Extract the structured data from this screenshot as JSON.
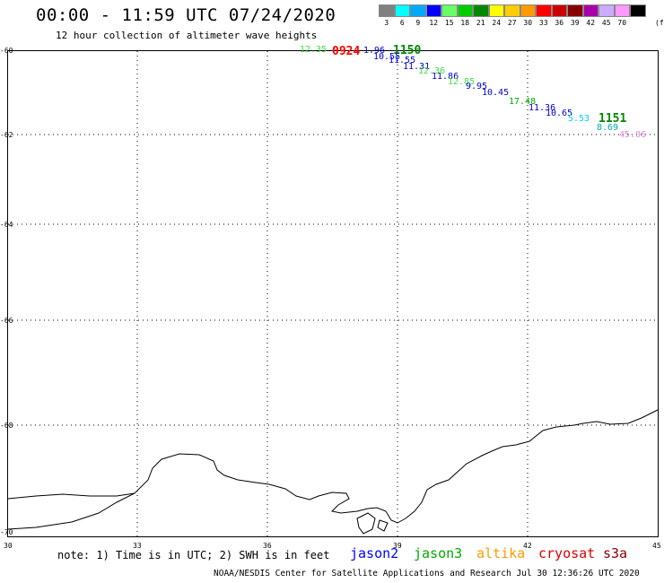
{
  "header": {
    "title": "00:00 - 11:59 UTC 07/24/2020",
    "subtitle": "12 hour collection of altimeter wave heights"
  },
  "scale": {
    "labels": [
      "3",
      "6",
      "9",
      "12",
      "15",
      "18",
      "21",
      "24",
      "27",
      "30",
      "33",
      "36",
      "39",
      "42",
      "45",
      "70"
    ],
    "unit": "(ft)",
    "colors": [
      "#808080",
      "#00ffff",
      "#00aaff",
      "#0000ff",
      "#66ff66",
      "#00cc00",
      "#008800",
      "#ffff00",
      "#ffcc00",
      "#ff9900",
      "#ff0000",
      "#cc0000",
      "#880000",
      "#aa00aa",
      "#ccaaff",
      "#ff99ff",
      "#000000"
    ]
  },
  "axes": {
    "y_labels": [
      "-60",
      "-62",
      "-64",
      "-66",
      "-68",
      "-70"
    ],
    "x_labels": [
      "30",
      "33",
      "36",
      "39",
      "42",
      "45"
    ]
  },
  "wave_labels": [
    {
      "text": "12.35",
      "color": "#44dd44"
    },
    {
      "text": "0924",
      "color": "#ff0000"
    },
    {
      "text": "1.96",
      "color": "#0000cc"
    },
    {
      "text": "1150",
      "color": "#008800"
    },
    {
      "text": "10.55",
      "color": "#0000cc"
    },
    {
      "text": "11.55",
      "color": "#0000cc"
    },
    {
      "text": "11.31",
      "color": "#0000cc"
    },
    {
      "text": "12.36",
      "color": "#44dd44"
    },
    {
      "text": "11.86",
      "color": "#0000cc"
    },
    {
      "text": "12.85",
      "color": "#44dd44"
    },
    {
      "text": "9.95",
      "color": "#0000cc"
    },
    {
      "text": "10.45",
      "color": "#0000cc"
    },
    {
      "text": "17.48",
      "color": "#00aa00"
    },
    {
      "text": "11.36",
      "color": "#0000cc"
    },
    {
      "text": "10.65",
      "color": "#0000cc"
    },
    {
      "text": "5.53",
      "color": "#00ccff"
    },
    {
      "text": "1151",
      "color": "#008800"
    },
    {
      "text": "8.69",
      "color": "#00aaaa"
    },
    {
      "text": "45.06",
      "color": "#dd88dd"
    }
  ],
  "note": "note: 1) Time is in UTC; 2) SWH is in feet",
  "satellites": [
    {
      "name": "jason2",
      "color": "#0000ff"
    },
    {
      "name": "jason3",
      "color": "#00aa00"
    },
    {
      "name": "altika",
      "color": "#ff9900"
    },
    {
      "name": "cryosat",
      "color": "#dd0000"
    },
    {
      "name": "s3a",
      "color": "#880000"
    }
  ],
  "footer": "NOAA/NESDIS Center for Satellite Applications and Research   Jul 30 12:36:26 UTC 2020"
}
